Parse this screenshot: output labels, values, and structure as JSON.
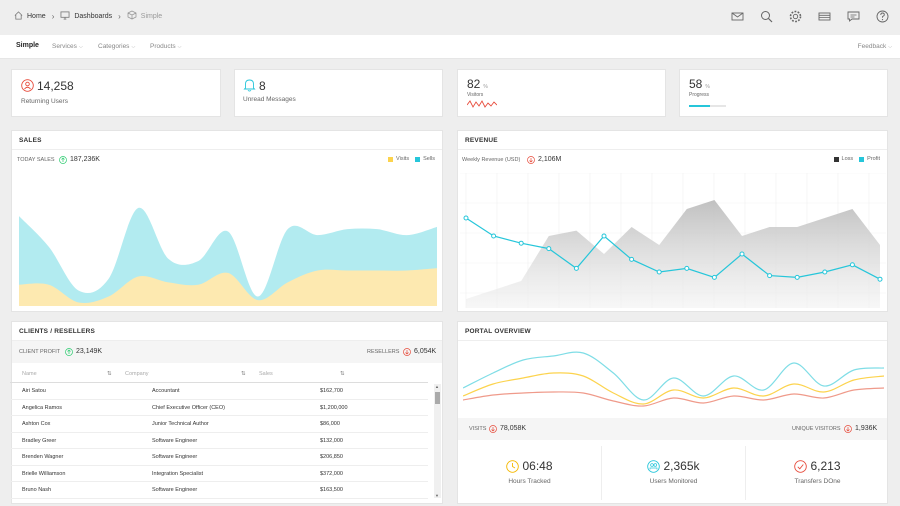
{
  "breadcrumbs": [
    {
      "label": "Home",
      "icon": "home-icon"
    },
    {
      "label": "Dashboards",
      "icon": "monitor-icon"
    },
    {
      "label": "Simple",
      "icon": "cube-icon"
    }
  ],
  "toolbar_icons": [
    "mail-icon",
    "search-icon",
    "gear-icon",
    "grid-icon",
    "chat-icon",
    "help-icon"
  ],
  "nav": {
    "active": "Simple",
    "items": [
      "Services",
      "Categories",
      "Products"
    ],
    "right": "Feedback"
  },
  "stats": {
    "returning": {
      "value": "14,258",
      "label": "Returning Users"
    },
    "unread": {
      "value": "8",
      "label": "Unread Messages"
    },
    "visitors": {
      "value": "82",
      "unit": "%",
      "label": "Visitors"
    },
    "progress": {
      "value": "58",
      "unit": "%",
      "label": "Progress",
      "fraction": 0.58
    }
  },
  "sales": {
    "title": "SALES",
    "today_label": "TODAY SALES",
    "today_value": "187,236K",
    "legend": [
      "Visits",
      "Sells"
    ]
  },
  "revenue": {
    "title": "REVENUE",
    "weekly_label": "Weekly Revenue (USD)",
    "weekly_value": "2,106M",
    "legend": [
      "Loss",
      "Profit"
    ]
  },
  "clients": {
    "title": "CLIENTS / RESELLERS",
    "profit_label": "CLIENT PROFIT",
    "profit_value": "23,149K",
    "resellers_label": "RESELLERS",
    "resellers_value": "6,054K",
    "columns": [
      "Name",
      "Company",
      "Sales"
    ],
    "rows": [
      [
        "Airi Satou",
        "Accountant",
        "$162,700"
      ],
      [
        "Angelica Ramos",
        "Chief Executive Officer (CEO)",
        "$1,200,000"
      ],
      [
        "Ashton Cox",
        "Junior Technical Author",
        "$86,000"
      ],
      [
        "Bradley Greer",
        "Software Engineer",
        "$132,000"
      ],
      [
        "Brenden Wagner",
        "Software Engineer",
        "$206,850"
      ],
      [
        "Brielle Williamson",
        "Integration Specialist",
        "$372,000"
      ],
      [
        "Bruno Nash",
        "Software Engineer",
        "$163,500"
      ]
    ]
  },
  "portal": {
    "title": "PORTAL OVERVIEW",
    "visits_label": "VISITS",
    "visits_value": "78,058K",
    "unique_label": "UNIQUE VISITORS",
    "unique_value": "1,936K",
    "hours": {
      "value": "06:48",
      "label": "Hours Tracked"
    },
    "users": {
      "value": "2,365k",
      "label": "Users Monitored"
    },
    "transfers": {
      "value": "6,213",
      "label": "Transfers DOne"
    }
  },
  "colors": {
    "accent": "#26c6da",
    "yellow": "#fcd34d",
    "red": "#e74c3c",
    "green": "#2ecc71",
    "gray": "#9e9e9e"
  },
  "chart_data": [
    {
      "type": "area",
      "series": [
        {
          "name": "Visits",
          "values": [
            18,
            18,
            3,
            8,
            25,
            20,
            18,
            28,
            5,
            20,
            30,
            30,
            30,
            30,
            32
          ]
        },
        {
          "name": "Sells",
          "values": [
            58,
            32,
            10,
            15,
            58,
            20,
            20,
            35,
            3,
            45,
            30,
            35,
            35,
            30,
            35
          ]
        }
      ]
    },
    {
      "type": "line",
      "series": [
        {
          "name": "Loss",
          "values": [
            5,
            10,
            15,
            40,
            43,
            30,
            45,
            35,
            55,
            60,
            40,
            45,
            45,
            50,
            55,
            35
          ]
        },
        {
          "name": "Profit",
          "values": [
            50,
            40,
            36,
            33,
            22,
            40,
            27,
            20,
            22,
            17,
            30,
            18,
            17,
            20,
            24,
            16
          ]
        }
      ]
    }
  ]
}
